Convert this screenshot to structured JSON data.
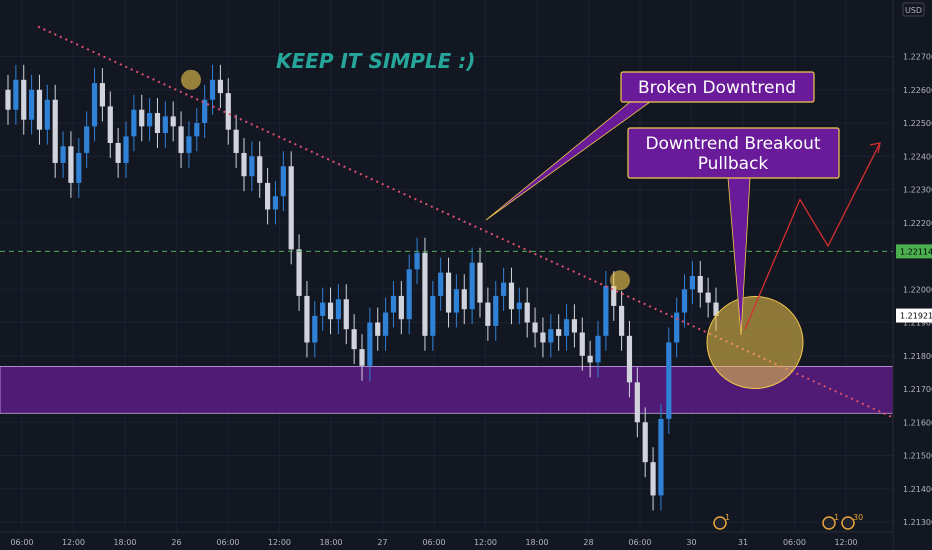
{
  "chart_data": {
    "type": "candlestick",
    "title": "KEEP IT SIMPLE :)",
    "currency": "USD",
    "ylim": [
      1.2127,
      1.2287
    ],
    "y_ticks": [
      "1.22700",
      "1.22600",
      "1.22500",
      "1.22400",
      "1.22300",
      "1.22200",
      "1.22000",
      "1.21900",
      "1.21800",
      "1.21700",
      "1.21600",
      "1.21500",
      "1.21400",
      "1.21300"
    ],
    "x_ticks": [
      "06:00",
      "12:00",
      "18:00",
      "26",
      "06:00",
      "12:00",
      "18:00",
      "27",
      "06:00",
      "12:00",
      "18:00",
      "28",
      "06:00",
      "30",
      "31",
      "06:00",
      "12:00"
    ],
    "price_line": {
      "value": 1.22114,
      "label": "1.22114"
    },
    "last_price": {
      "value": 1.21921,
      "label": "1.21921"
    },
    "support_zone": {
      "from": 1.21627,
      "to": 1.21768
    },
    "downtrend_line": {
      "from_value": 1.2279,
      "to_value": 1.2161
    },
    "touch_points": [
      "downtrend top touch",
      "retest touch"
    ],
    "annotations": [
      {
        "id": "broken",
        "text": "Broken Downtrend"
      },
      {
        "id": "breakout",
        "line1": "Downtrend Breakout",
        "line2": "Pullback"
      }
    ],
    "projection": [
      1.2188,
      1.2227,
      1.2213,
      1.2244
    ],
    "candles": [
      [
        1.226,
        1.2254
      ],
      [
        1.2254,
        1.2263
      ],
      [
        1.2263,
        1.2251
      ],
      [
        1.2251,
        1.226
      ],
      [
        1.226,
        1.2248
      ],
      [
        1.2248,
        1.2257
      ],
      [
        1.2257,
        1.2238
      ],
      [
        1.2238,
        1.2243
      ],
      [
        1.2243,
        1.2232
      ],
      [
        1.2232,
        1.2241
      ],
      [
        1.2241,
        1.2249
      ],
      [
        1.2249,
        1.2262
      ],
      [
        1.2262,
        1.2255
      ],
      [
        1.2255,
        1.2244
      ],
      [
        1.2244,
        1.2238
      ],
      [
        1.2238,
        1.2246
      ],
      [
        1.2246,
        1.2254
      ],
      [
        1.2254,
        1.2249
      ],
      [
        1.2249,
        1.2253
      ],
      [
        1.2253,
        1.2247
      ],
      [
        1.2247,
        1.2252
      ],
      [
        1.2252,
        1.2249
      ],
      [
        1.2249,
        1.2241
      ],
      [
        1.2241,
        1.2246
      ],
      [
        1.2246,
        1.225
      ],
      [
        1.225,
        1.2257
      ],
      [
        1.2257,
        1.2263
      ],
      [
        1.2263,
        1.2259
      ],
      [
        1.2259,
        1.2248
      ],
      [
        1.2248,
        1.2241
      ],
      [
        1.2241,
        1.2234
      ],
      [
        1.2234,
        1.224
      ],
      [
        1.224,
        1.2232
      ],
      [
        1.2232,
        1.2224
      ],
      [
        1.2224,
        1.2228
      ],
      [
        1.2228,
        1.2237
      ],
      [
        1.2237,
        1.2212
      ],
      [
        1.2212,
        1.2198
      ],
      [
        1.2198,
        1.2184
      ],
      [
        1.2184,
        1.2192
      ],
      [
        1.2192,
        1.2196
      ],
      [
        1.2196,
        1.2191
      ],
      [
        1.2191,
        1.2197
      ],
      [
        1.2197,
        1.2188
      ],
      [
        1.2188,
        1.2182
      ],
      [
        1.2182,
        1.2177
      ],
      [
        1.2177,
        1.219
      ],
      [
        1.219,
        1.2186
      ],
      [
        1.2186,
        1.2193
      ],
      [
        1.2193,
        1.2198
      ],
      [
        1.2198,
        1.2191
      ],
      [
        1.2191,
        1.2206
      ],
      [
        1.2206,
        1.2211
      ],
      [
        1.2211,
        1.2186
      ],
      [
        1.2186,
        1.2198
      ],
      [
        1.2198,
        1.2205
      ],
      [
        1.2205,
        1.2193
      ],
      [
        1.2193,
        1.22
      ],
      [
        1.22,
        1.2194
      ],
      [
        1.2194,
        1.2208
      ],
      [
        1.2208,
        1.2196
      ],
      [
        1.2196,
        1.2189
      ],
      [
        1.2189,
        1.2198
      ],
      [
        1.2198,
        1.2202
      ],
      [
        1.2202,
        1.2194
      ],
      [
        1.2194,
        1.2196
      ],
      [
        1.2196,
        1.219
      ],
      [
        1.219,
        1.2187
      ],
      [
        1.2187,
        1.2184
      ],
      [
        1.2184,
        1.2188
      ],
      [
        1.2188,
        1.2186
      ],
      [
        1.2186,
        1.2191
      ],
      [
        1.2191,
        1.2187
      ],
      [
        1.2187,
        1.218
      ],
      [
        1.218,
        1.2178
      ],
      [
        1.2178,
        1.2186
      ],
      [
        1.2186,
        1.2201
      ],
      [
        1.2201,
        1.2195
      ],
      [
        1.2195,
        1.2186
      ],
      [
        1.2186,
        1.2172
      ],
      [
        1.2172,
        1.216
      ],
      [
        1.216,
        1.2148
      ],
      [
        1.2148,
        1.2138
      ],
      [
        1.2138,
        1.2161
      ],
      [
        1.2161,
        1.2184
      ],
      [
        1.2184,
        1.2193
      ],
      [
        1.2193,
        1.22
      ],
      [
        1.22,
        1.2204
      ],
      [
        1.2204,
        1.2199
      ],
      [
        1.2199,
        1.2196
      ],
      [
        1.2196,
        1.2192
      ]
    ]
  },
  "badges": [
    {
      "label": "1"
    },
    {
      "label": "1"
    },
    {
      "label": "30"
    }
  ]
}
